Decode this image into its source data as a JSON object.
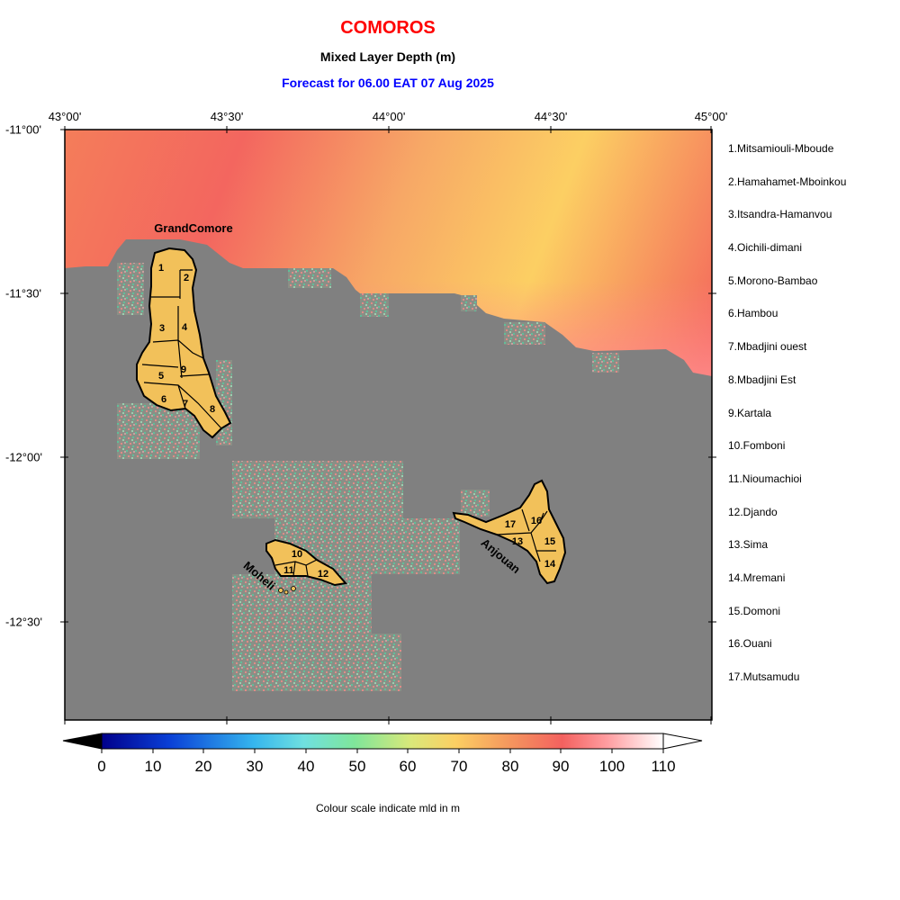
{
  "header": {
    "country": "COMOROS",
    "variable": "Mixed Layer Depth (m)",
    "forecast": "Forecast for  06.00 EAT 07 Aug 2025"
  },
  "axes": {
    "lon_ticks": [
      "43°00'",
      "43°30'",
      "44°00'",
      "44°30'",
      "45°00'"
    ],
    "lat_ticks": [
      "-11°00'",
      "-11°30'",
      "-12°00'",
      "-12°30'"
    ]
  },
  "islands": {
    "grand_comore": "GrandComore",
    "moheli": "Moheli",
    "anjouan": "Anjouan"
  },
  "regions": [
    {
      "num": "1",
      "name": "1.Mitsamiouli-Mboude"
    },
    {
      "num": "2",
      "name": "2.Hamahamet-Mboinkou"
    },
    {
      "num": "3",
      "name": "3.Itsandra-Hamanvou"
    },
    {
      "num": "4",
      "name": "4.Oichili-dimani"
    },
    {
      "num": "5",
      "name": "5.Morono-Bambao"
    },
    {
      "num": "6",
      "name": "6.Hambou"
    },
    {
      "num": "7",
      "name": "7.Mbadjini ouest"
    },
    {
      "num": "8",
      "name": "8.Mbadjini Est"
    },
    {
      "num": "9",
      "name": "9.Kartala"
    },
    {
      "num": "10",
      "name": "10.Fomboni"
    },
    {
      "num": "11",
      "name": "11.Nioumachioi"
    },
    {
      "num": "12",
      "name": "12.Djando"
    },
    {
      "num": "13",
      "name": "13.Sima"
    },
    {
      "num": "14",
      "name": "14.Mremani"
    },
    {
      "num": "15",
      "name": "15.Domoni"
    },
    {
      "num": "16",
      "name": "16.Ouani"
    },
    {
      "num": "17",
      "name": "17.Mutsamudu"
    }
  ],
  "colorbar": {
    "ticks": [
      "0",
      "10",
      "20",
      "30",
      "40",
      "50",
      "60",
      "70",
      "80",
      "90",
      "100",
      "110"
    ],
    "caption": "Colour scale indicate mld in m"
  },
  "colors": {
    "land": "#f2c15a",
    "masked_ocean": "#808080",
    "mld_warm": "#f46a5c",
    "mld_yellow": "#fccf63",
    "title": "#ff0000",
    "forecast_text": "#0000ff"
  }
}
